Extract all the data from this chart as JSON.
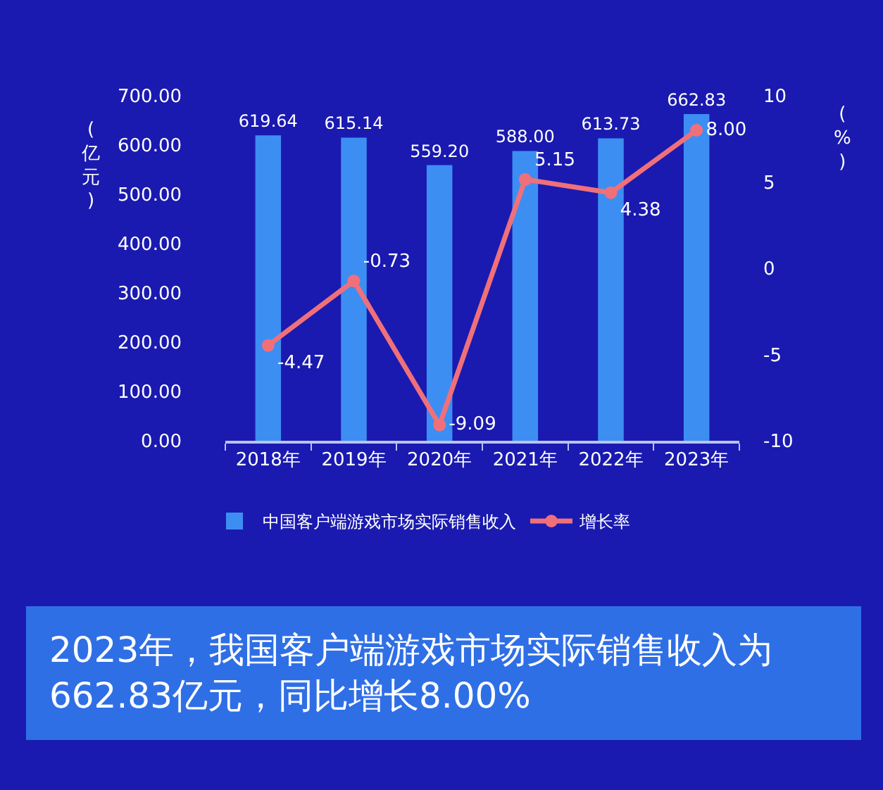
{
  "chart_data": {
    "type": "bar",
    "categories": [
      "2018年",
      "2019年",
      "2020年",
      "2021年",
      "2022年",
      "2023年"
    ],
    "series": [
      {
        "name": "中国客户端游戏市场实际销售收入",
        "color": "#3d8ef2",
        "values": [
          619.64,
          615.14,
          559.2,
          588.0,
          613.73,
          662.83
        ],
        "value_labels": [
          "619.64",
          "615.14",
          "559.20",
          "588.00",
          "613.73",
          "662.83"
        ]
      },
      {
        "name": "增长率",
        "type": "line",
        "axis": "y2",
        "color": "#f0707a",
        "values": [
          -4.47,
          -0.73,
          -9.09,
          5.15,
          4.38,
          8.0
        ],
        "value_labels": [
          "-4.47",
          "-0.73",
          "-9.09",
          "5.15",
          "4.38",
          "8.00"
        ]
      }
    ],
    "ylabel": "(亿元)",
    "y2label": "(%)",
    "ylim": [
      0,
      700
    ],
    "yticks": [
      {
        "value": 0,
        "label": "0.00"
      },
      {
        "value": 100,
        "label": "100.00"
      },
      {
        "value": 200,
        "label": "200.00"
      },
      {
        "value": 300,
        "label": "300.00"
      },
      {
        "value": 400,
        "label": "400.00"
      },
      {
        "value": 500,
        "label": "500.00"
      },
      {
        "value": 600,
        "label": "600.00"
      },
      {
        "value": 700,
        "label": "700.00"
      }
    ],
    "y2lim": [
      -10,
      10
    ],
    "y2ticks": [
      -10,
      -5,
      0,
      5,
      10
    ],
    "legend": "bottom",
    "grid": false,
    "marker": "circle",
    "line_style": "solid",
    "annotations": [
      "2023年，我国客户端游戏市场实际销售收入为",
      "662.83亿元，同比增长8.00%"
    ]
  }
}
